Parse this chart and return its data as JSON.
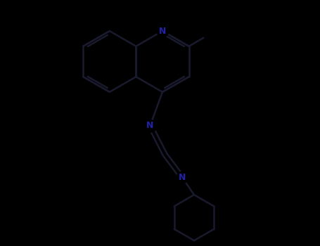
{
  "background_color": "#000000",
  "bond_color": "#1a1a2e",
  "nitrogen_color": "#2222aa",
  "line_width": 1.8,
  "fig_width": 4.55,
  "fig_height": 3.5,
  "dpi": 100,
  "xlim": [
    -2.8,
    2.8
  ],
  "ylim": [
    -2.2,
    2.8
  ]
}
